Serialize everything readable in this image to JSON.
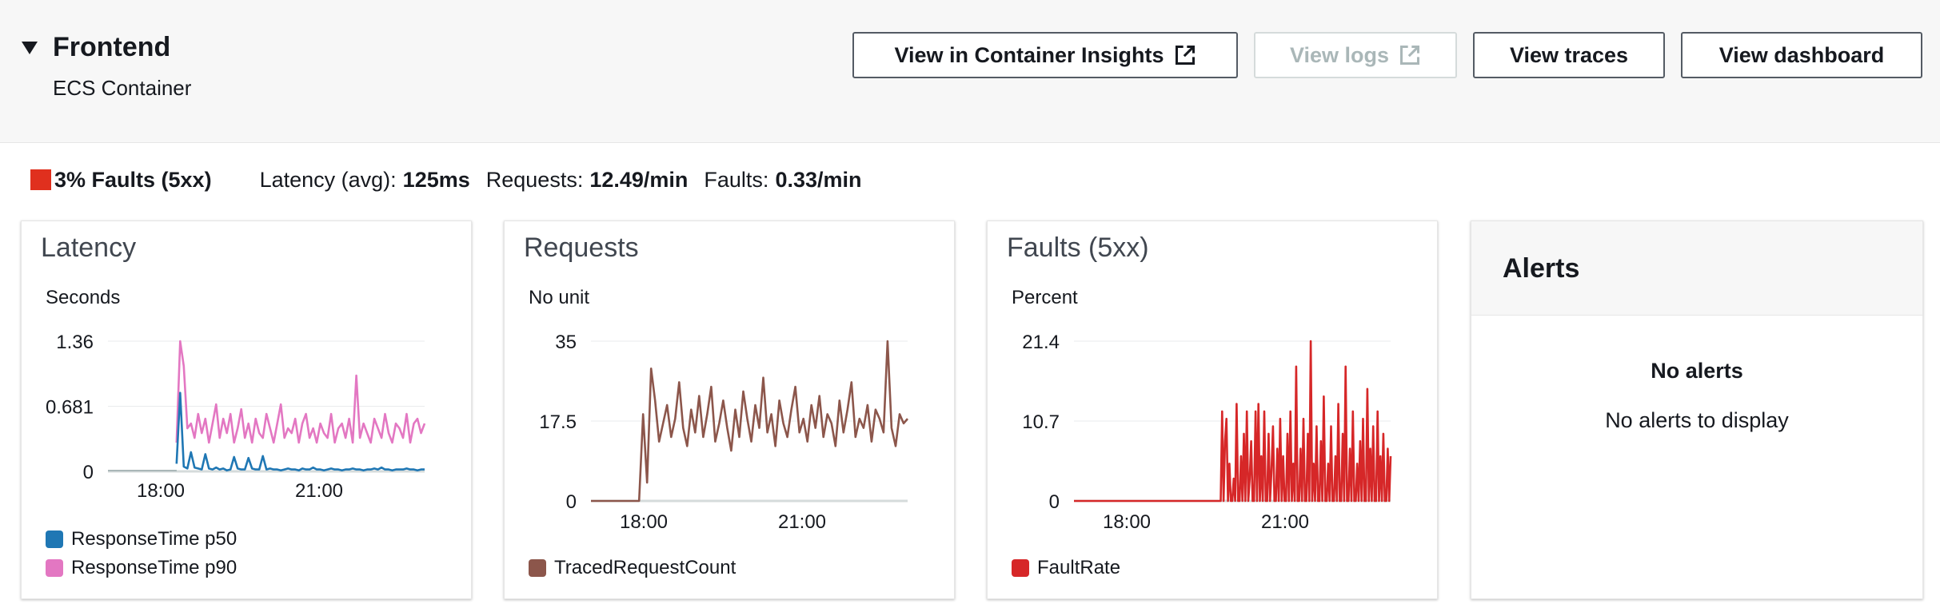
{
  "header": {
    "title": "Frontend",
    "subtitle": "ECS Container",
    "buttons": {
      "container_insights": "View in Container Insights",
      "logs": "View logs",
      "traces": "View traces",
      "dashboard": "View dashboard"
    }
  },
  "summary": {
    "fault_badge": "3% Faults (5xx)",
    "latency_label": "Latency (avg):",
    "latency_value": "125ms",
    "requests_label": "Requests:",
    "requests_value": "12.49/min",
    "faults_label": "Faults:",
    "faults_value": "0.33/min",
    "fault_color": "#e0301e"
  },
  "panels": {
    "latency": {
      "title": "Latency",
      "unit": "Seconds"
    },
    "requests": {
      "title": "Requests",
      "unit": "No unit"
    },
    "faults": {
      "title": "Faults (5xx)",
      "unit": "Percent"
    },
    "alerts": {
      "title": "Alerts",
      "empty_title": "No alerts",
      "empty_text": "No alerts to display"
    }
  },
  "icons": {
    "external_link": "external-link-icon",
    "expand": "caret-down-icon"
  },
  "chart_data": [
    {
      "type": "line",
      "ylabel": "Seconds",
      "xticks": [
        "18:00",
        "21:00"
      ],
      "yticks": [
        "1.36",
        "0.681",
        "0"
      ],
      "ylim": [
        0,
        1.36
      ],
      "x_hours": [
        17.0,
        23.0
      ],
      "series": [
        {
          "name": "ResponseTime p50",
          "color": "#1f77b4",
          "start": 18.3,
          "values": [
            0.08,
            0.82,
            0.05,
            0.03,
            0.2,
            0.04,
            0.03,
            0.02,
            0.18,
            0.03,
            0.02,
            0.04,
            0.02,
            0.03,
            0.01,
            0.02,
            0.15,
            0.03,
            0.02,
            0.02,
            0.14,
            0.03,
            0.02,
            0.02,
            0.16,
            0.02,
            0.03,
            0.02,
            0.02,
            0.01,
            0.02,
            0.03,
            0.02,
            0.02,
            0.01,
            0.03,
            0.02,
            0.02,
            0.04,
            0.02,
            0.02,
            0.01,
            0.02,
            0.03,
            0.02,
            0.02,
            0.01,
            0.02,
            0.02,
            0.03,
            0.02,
            0.02,
            0.01,
            0.02,
            0.02,
            0.03,
            0.02,
            0.04,
            0.02,
            0.02,
            0.01,
            0.02,
            0.02,
            0.02,
            0.03,
            0.02,
            0.02,
            0.01,
            0.02,
            0.02
          ]
        },
        {
          "name": "ResponseTime p90",
          "color": "#e377c2",
          "start": 18.3,
          "values": [
            0.3,
            1.36,
            1.1,
            0.45,
            0.5,
            0.35,
            0.6,
            0.4,
            0.55,
            0.3,
            0.5,
            0.7,
            0.35,
            0.55,
            0.4,
            0.6,
            0.3,
            0.45,
            0.65,
            0.35,
            0.5,
            0.3,
            0.55,
            0.4,
            0.35,
            0.6,
            0.45,
            0.3,
            0.5,
            0.7,
            0.35,
            0.45,
            0.4,
            0.55,
            0.3,
            0.5,
            0.6,
            0.35,
            0.45,
            0.3,
            0.5,
            0.4,
            0.35,
            0.6,
            0.3,
            0.45,
            0.5,
            0.35,
            0.55,
            0.3,
            1.0,
            0.35,
            0.5,
            0.4,
            0.3,
            0.55,
            0.45,
            0.35,
            0.6,
            0.4,
            0.3,
            0.5,
            0.45,
            0.35,
            0.6,
            0.3,
            0.5,
            0.55,
            0.4,
            0.5
          ]
        }
      ]
    },
    {
      "type": "line",
      "ylabel": "No unit",
      "xticks": [
        "18:00",
        "21:00"
      ],
      "yticks": [
        "35",
        "17.5",
        "0"
      ],
      "ylim": [
        0,
        35
      ],
      "x_hours": [
        17.0,
        23.0
      ],
      "series": [
        {
          "name": "TracedRequestCount",
          "color": "#8c564b",
          "start": 17.0,
          "values": [
            0,
            0,
            0,
            0,
            0,
            0,
            0,
            0,
            0,
            0,
            0,
            0,
            0,
            19,
            4,
            29,
            22,
            13,
            17,
            21,
            14,
            18,
            26,
            16,
            12,
            20,
            15,
            23,
            14,
            19,
            25,
            13,
            17,
            22,
            16,
            11,
            20,
            14,
            24,
            18,
            13,
            21,
            16,
            27,
            15,
            19,
            12,
            22,
            17,
            14,
            20,
            25,
            15,
            18,
            13,
            21,
            16,
            23,
            14,
            19,
            17,
            12,
            22,
            15,
            20,
            26,
            14,
            18,
            16,
            21,
            13,
            20,
            18,
            15,
            35,
            16,
            12,
            19,
            17,
            18
          ]
        }
      ]
    },
    {
      "type": "line",
      "ylabel": "Percent",
      "xticks": [
        "18:00",
        "21:00"
      ],
      "yticks": [
        "21.4",
        "10.7",
        "0"
      ],
      "ylim": [
        0,
        21.4
      ],
      "x_hours": [
        17.0,
        23.0
      ],
      "series": [
        {
          "name": "FaultRate",
          "color": "#d62728",
          "start": 17.0,
          "values": [
            0,
            0,
            0,
            0,
            0,
            0,
            0,
            0,
            0,
            0,
            0,
            0,
            0,
            0,
            0,
            0,
            0,
            0,
            0,
            0,
            0,
            0,
            0,
            0,
            0,
            0,
            0,
            0,
            0,
            0,
            0,
            0,
            0,
            0,
            0,
            0,
            0,
            0,
            0,
            0,
            0,
            0,
            0,
            0,
            0,
            0,
            0,
            0,
            0,
            0,
            0,
            0,
            0,
            0,
            0,
            0,
            0,
            0,
            0,
            0,
            0,
            0,
            0,
            0,
            0,
            0,
            0,
            0,
            0,
            0,
            0,
            0,
            0,
            0,
            0,
            0,
            0,
            0,
            0,
            0,
            0,
            0,
            0,
            0,
            0,
            0,
            0,
            0,
            0,
            0,
            0,
            0,
            0,
            0,
            0,
            0,
            0,
            0,
            0,
            0,
            0,
            0,
            12,
            0,
            8,
            11,
            0,
            5,
            0,
            0,
            3,
            0,
            13,
            0,
            0,
            6,
            0,
            9,
            0,
            12,
            0,
            3,
            8,
            0,
            0,
            12,
            0,
            13,
            0,
            6,
            0,
            12,
            0,
            0,
            9,
            0,
            4,
            10,
            0,
            0,
            7,
            0,
            11,
            0,
            6,
            0,
            0,
            9,
            0,
            12,
            0,
            5,
            0,
            18,
            0,
            0,
            7,
            0,
            11,
            0,
            0,
            9,
            0,
            21.4,
            0,
            5,
            0,
            10,
            0,
            0,
            8,
            0,
            14,
            0,
            0,
            5,
            0,
            10,
            0,
            0,
            6,
            0,
            13,
            0,
            0,
            9,
            0,
            18,
            0,
            0,
            7,
            0,
            12,
            0,
            0,
            5,
            0,
            8,
            0,
            11,
            0,
            0,
            15,
            0,
            7,
            0,
            10,
            0,
            0,
            12,
            0,
            6,
            0,
            9,
            0,
            0,
            7,
            0,
            6
          ]
        }
      ]
    }
  ]
}
